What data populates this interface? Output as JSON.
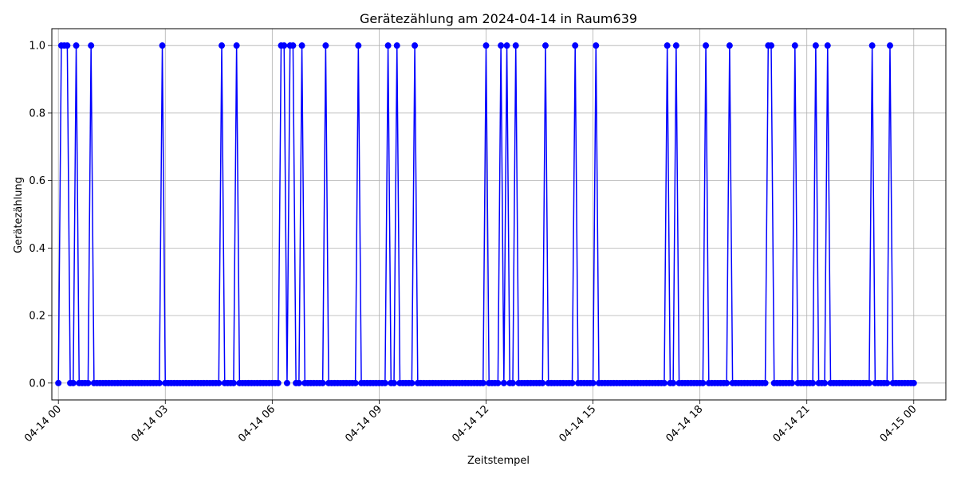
{
  "chart_data": {
    "type": "line",
    "title": "Gerätezählung am 2024-04-14 in Raum639",
    "xlabel": "Zeitstempel",
    "ylabel": "Gerätezählung",
    "xlim": [
      "2024-04-13 23:49",
      "2024-04-15 00:54"
    ],
    "ylim": [
      -0.05,
      1.05
    ],
    "grid": true,
    "color": "#0000ff",
    "x_ticks": [
      {
        "value": "2024-04-14 00:00",
        "label": "04-14 00"
      },
      {
        "value": "2024-04-14 03:00",
        "label": "04-14 03"
      },
      {
        "value": "2024-04-14 06:00",
        "label": "04-14 06"
      },
      {
        "value": "2024-04-14 09:00",
        "label": "04-14 09"
      },
      {
        "value": "2024-04-14 12:00",
        "label": "04-14 12"
      },
      {
        "value": "2024-04-14 15:00",
        "label": "04-14 15"
      },
      {
        "value": "2024-04-14 18:00",
        "label": "04-14 18"
      },
      {
        "value": "2024-04-14 21:00",
        "label": "04-14 21"
      },
      {
        "value": "2024-04-15 00:00",
        "label": "04-15 00"
      }
    ],
    "y_ticks": [
      {
        "value": 0.0,
        "label": "0.0"
      },
      {
        "value": 0.2,
        "label": "0.2"
      },
      {
        "value": 0.4,
        "label": "0.4"
      },
      {
        "value": 0.6,
        "label": "0.6"
      },
      {
        "value": 0.8,
        "label": "0.8"
      },
      {
        "value": 1.0,
        "label": "1.0"
      }
    ],
    "sampling": {
      "start": "2024-04-14 00:00",
      "end": "2024-04-15 00:00",
      "interval_minutes": 5,
      "default_value": 0
    },
    "series": [
      {
        "values_equal_1_at": [
          "2024-04-14 00:05",
          "2024-04-14 00:10",
          "2024-04-14 00:15",
          "2024-04-14 00:30",
          "2024-04-14 00:55",
          "2024-04-14 02:55",
          "2024-04-14 04:35",
          "2024-04-14 05:00",
          "2024-04-14 06:15",
          "2024-04-14 06:20",
          "2024-04-14 06:30",
          "2024-04-14 06:35",
          "2024-04-14 06:50",
          "2024-04-14 07:30",
          "2024-04-14 08:25",
          "2024-04-14 09:15",
          "2024-04-14 09:30",
          "2024-04-14 10:00",
          "2024-04-14 12:00",
          "2024-04-14 12:25",
          "2024-04-14 12:35",
          "2024-04-14 12:50",
          "2024-04-14 13:40",
          "2024-04-14 14:30",
          "2024-04-14 15:05",
          "2024-04-14 17:05",
          "2024-04-14 17:20",
          "2024-04-14 18:10",
          "2024-04-14 18:50",
          "2024-04-14 19:55",
          "2024-04-14 20:00",
          "2024-04-14 20:40",
          "2024-04-14 21:15",
          "2024-04-14 21:35",
          "2024-04-14 22:50",
          "2024-04-14 23:20"
        ]
      }
    ]
  }
}
